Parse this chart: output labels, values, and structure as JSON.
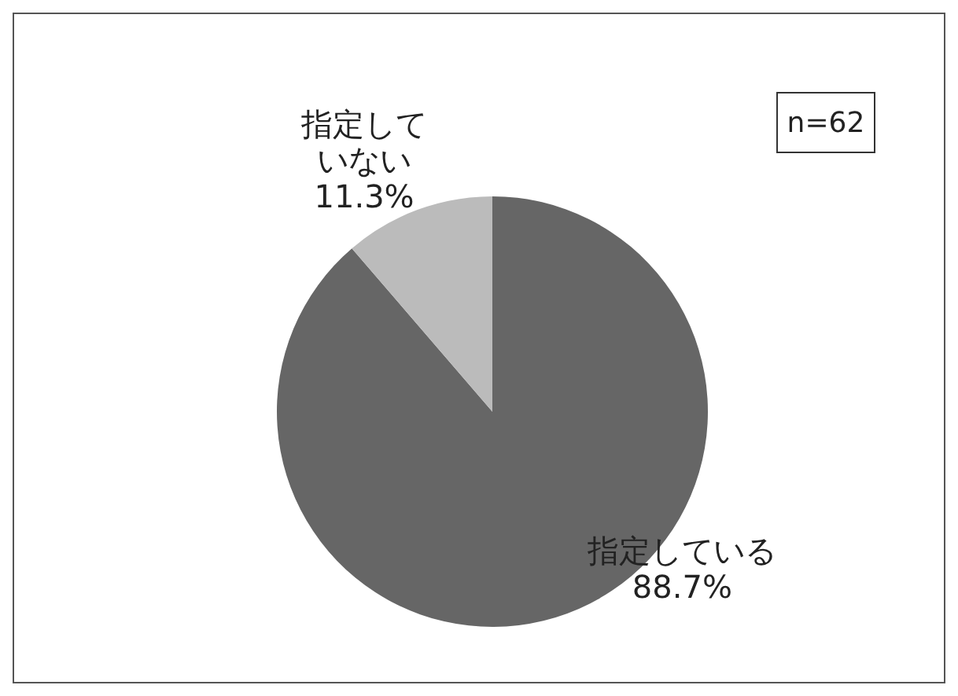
{
  "chart_data": {
    "type": "pie",
    "categories": [
      "指定している",
      "指定していない"
    ],
    "values": [
      88.7,
      11.3
    ],
    "colors": [
      "#666666",
      "#bbbbbb"
    ],
    "value_labels": [
      "88.7%",
      "11.3%"
    ],
    "annotations": [
      "n=62"
    ]
  }
}
